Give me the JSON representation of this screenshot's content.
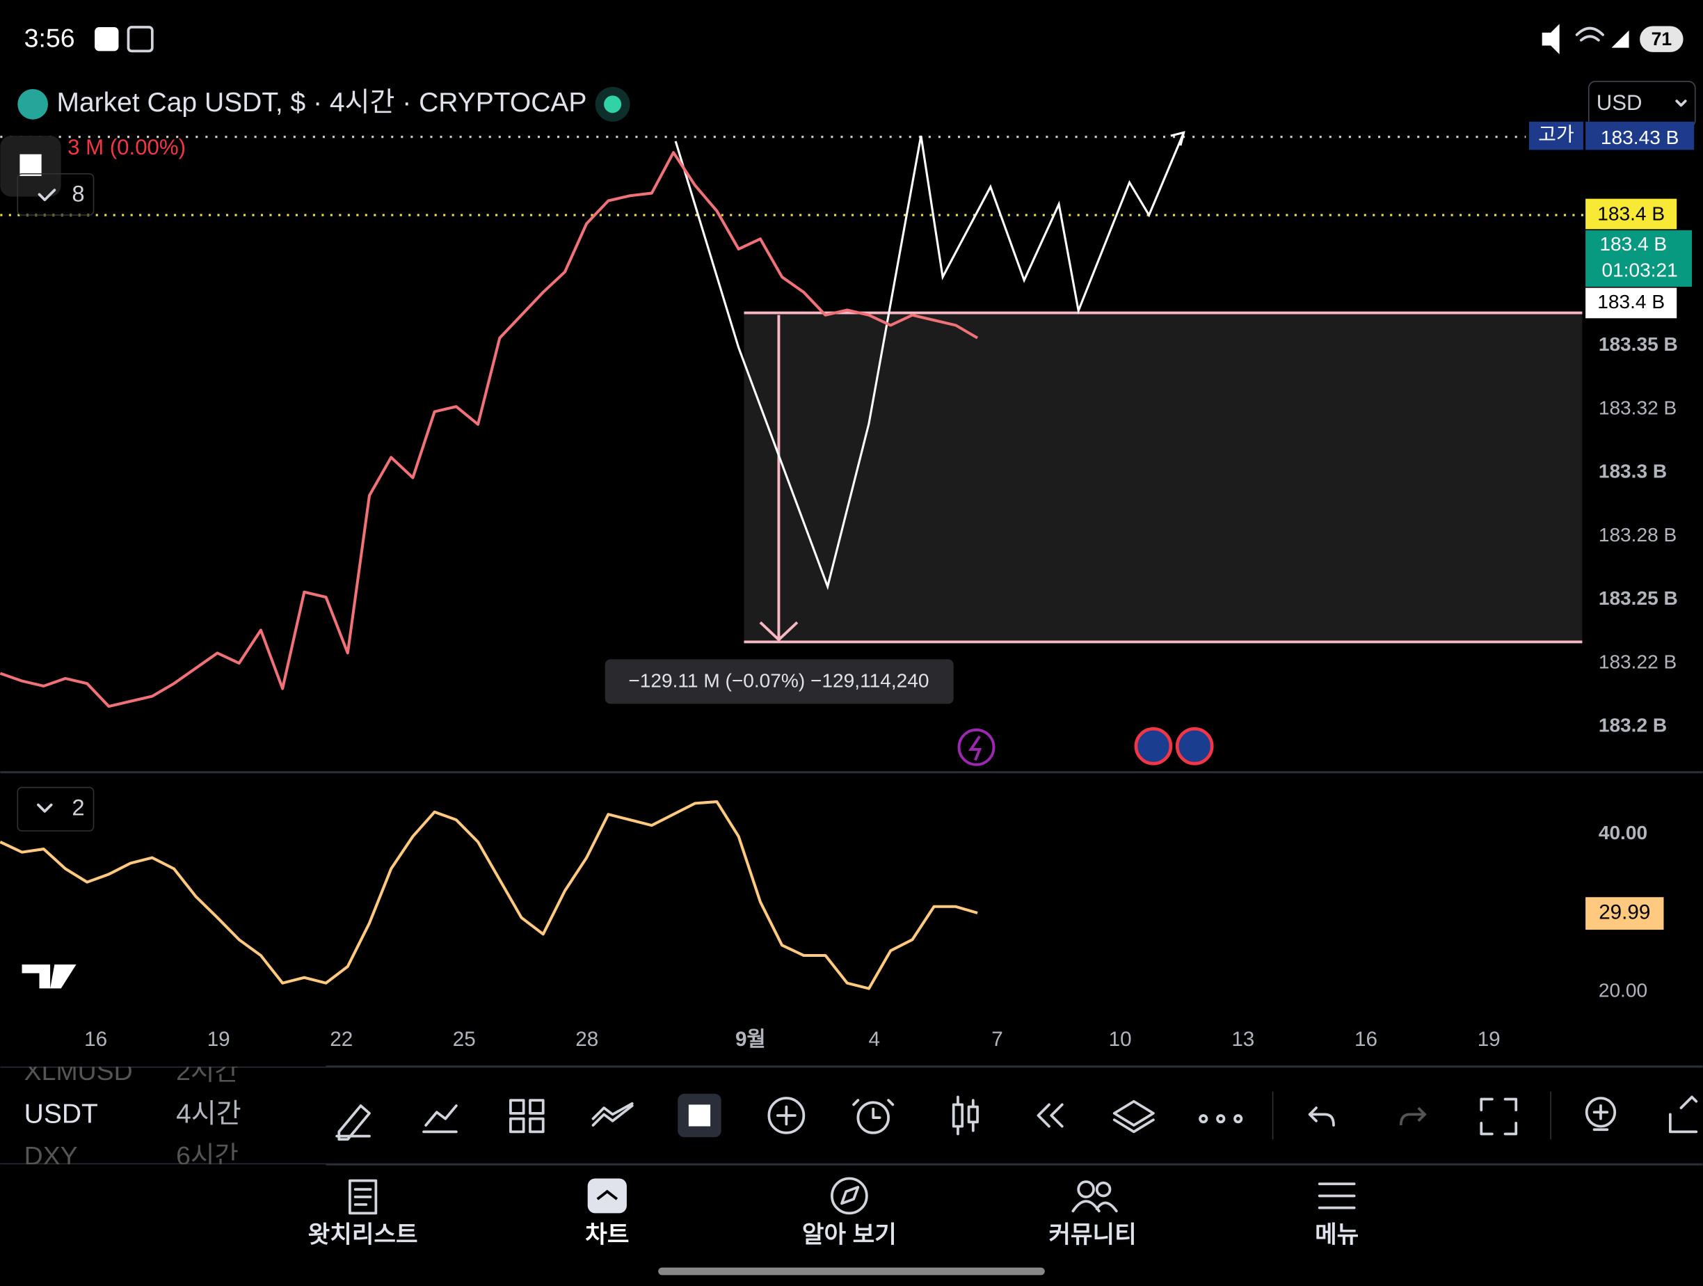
{
  "status_bar": {
    "time": "3:56",
    "battery": "71"
  },
  "header": {
    "title": "Market Cap USDT, $ · 4시간 · CRYPTOCAP",
    "change": "3 M (0.00%)",
    "currency": "USD",
    "indicator_count": "8"
  },
  "chart_data": [
    {
      "type": "line",
      "series": [
        {
          "color": "#f07178",
          "values": [
            183.221,
            183.218,
            183.216,
            183.219,
            183.217,
            183.208,
            183.21,
            183.212,
            183.217,
            183.223,
            183.229,
            183.225,
            183.238,
            183.215,
            183.253,
            183.251,
            183.229,
            183.291,
            183.306,
            183.298,
            183.324,
            183.326,
            183.319,
            183.353,
            183.362,
            183.371,
            183.379,
            183.398,
            183.407,
            183.409,
            183.41,
            183.426,
            183.413,
            183.403,
            183.388,
            183.392,
            183.377,
            183.371,
            183.362,
            183.364,
            183.362,
            183.358,
            183.362,
            183.36,
            183.358,
            183.353
          ]
        }
      ],
      "ylim": [
        183.1825,
        183.439
      ],
      "yticks": [
        {
          "value": 183.2,
          "label": "183.2 B"
        },
        {
          "value": 183.225,
          "label": "183.22 B"
        },
        {
          "value": 183.25,
          "label": "183.25 B"
        },
        {
          "value": 183.275,
          "label": "183.28 B"
        },
        {
          "value": 183.3,
          "label": "183.3 B"
        },
        {
          "value": 183.325,
          "label": "183.32 B"
        },
        {
          "value": 183.35,
          "label": "183.35 B"
        }
      ],
      "high_label": "고가",
      "price_tags": [
        "183.43 B",
        "183.4 B",
        "183.4 B",
        "01:03:21",
        "183.4 B"
      ],
      "measure_label": "−129.11 M (−0.07%) −129,114,240"
    },
    {
      "type": "line",
      "indicator_count": "2",
      "series": [
        {
          "color": "#ffc980",
          "values": [
            39.0,
            37.7,
            38.1,
            35.6,
            33.9,
            34.9,
            36.3,
            37.0,
            35.6,
            32.1,
            29.4,
            26.6,
            24.6,
            21.1,
            21.8,
            21.1,
            23.2,
            28.7,
            35.6,
            39.7,
            42.8,
            41.8,
            39.0,
            34.2,
            29.4,
            27.3,
            32.8,
            37.0,
            42.5,
            41.8,
            41.1,
            42.5,
            43.9,
            44.1,
            39.7,
            31.4,
            25.9,
            24.6,
            24.6,
            21.1,
            20.4,
            25.2,
            26.6,
            30.8,
            30.8,
            29.99
          ]
        }
      ],
      "ylim": [
        15.6,
        47.7
      ],
      "yticks": [
        {
          "value": 40,
          "label": "40.00"
        },
        {
          "value": 20,
          "label": "20.00"
        }
      ],
      "last_label": "29.99"
    }
  ],
  "time_axis": [
    "16",
    "19",
    "22",
    "25",
    "28",
    "9월",
    "4",
    "7",
    "10",
    "13",
    "16",
    "19"
  ],
  "symbol_list": [
    {
      "symbol": "XLMUSD",
      "interval": "2시간"
    },
    {
      "symbol": "USDT",
      "interval": "4시간"
    },
    {
      "symbol": "DXY",
      "interval": "6시간"
    }
  ],
  "nav": [
    "왓치리스트",
    "차트",
    "알아 보기",
    "커뮤니티",
    "메뉴"
  ]
}
